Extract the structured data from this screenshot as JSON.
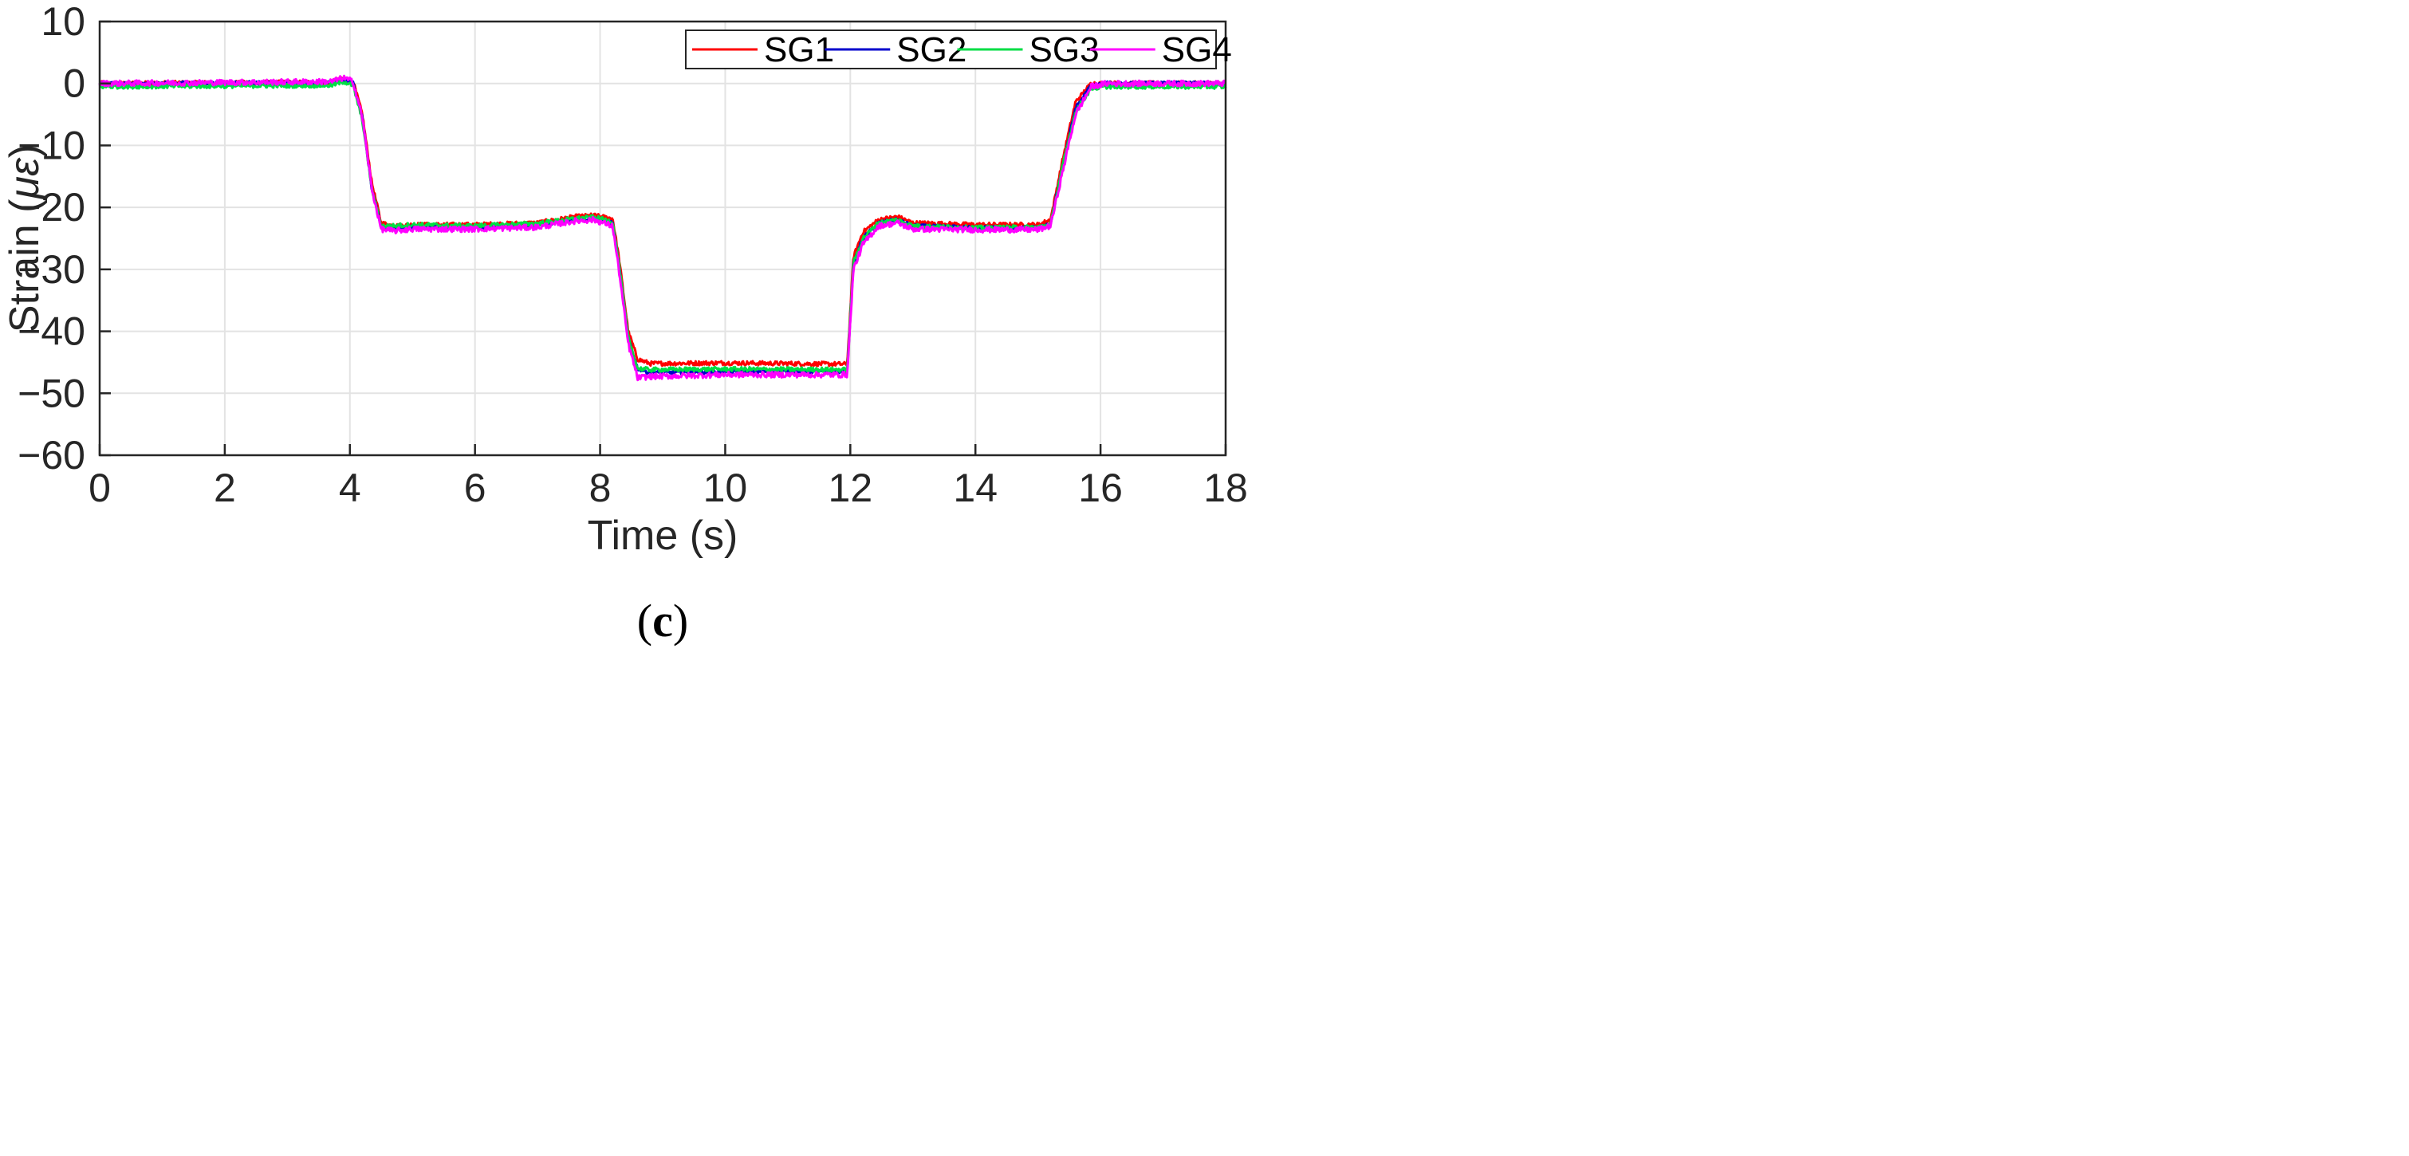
{
  "chart_data": {
    "type": "line",
    "xlabel": "Time (s)",
    "ylabel_prefix": "Strain (",
    "ylabel_symbol": "με",
    "ylabel_suffix": ")",
    "xlim": [
      0,
      18
    ],
    "ylim": [
      -60,
      10
    ],
    "xticks": [
      0,
      2,
      4,
      6,
      8,
      10,
      12,
      14,
      16,
      18
    ],
    "yticks": [
      10,
      0,
      -10,
      -20,
      -30,
      -40,
      -50,
      -60
    ],
    "ytick_labels": [
      "10",
      "0",
      "−10",
      "−20",
      "−30",
      "−40",
      "−50",
      "−60"
    ],
    "grid": true,
    "legend_position": "top-right",
    "legend_orientation": "horizontal",
    "caption_open": "(",
    "caption_letter": "c",
    "caption_close": ")",
    "series": [
      {
        "name": "SG1",
        "color": "#ff0000",
        "noise": 0.35,
        "x": [
          0,
          3.7,
          3.9,
          4.05,
          4.2,
          4.35,
          4.5,
          4.7,
          5.0,
          6.0,
          7.0,
          7.6,
          7.9,
          8.2,
          8.3,
          8.45,
          8.6,
          8.8,
          10.0,
          11.95,
          12.05,
          12.2,
          12.45,
          12.75,
          13.0,
          14.0,
          15.0,
          15.2,
          15.4,
          15.6,
          15.85,
          16.1,
          17.0,
          18.0
        ],
        "y": [
          0,
          0.2,
          0.8,
          0.4,
          -5,
          -16,
          -22.5,
          -23,
          -22.8,
          -22.8,
          -22.5,
          -21.5,
          -21.3,
          -21.8,
          -28,
          -40,
          -44.5,
          -45.2,
          -45.1,
          -45.3,
          -28,
          -24,
          -22,
          -21.5,
          -22.5,
          -22.8,
          -22.8,
          -22,
          -12,
          -3,
          0,
          0,
          0,
          0
        ]
      },
      {
        "name": "SG2",
        "color": "#0000cc",
        "noise": 0.3,
        "x": [
          0,
          3.7,
          3.9,
          4.05,
          4.2,
          4.35,
          4.5,
          4.7,
          5.0,
          6.0,
          7.0,
          7.6,
          7.9,
          8.2,
          8.3,
          8.45,
          8.6,
          8.8,
          10.0,
          11.95,
          12.05,
          12.2,
          12.45,
          12.75,
          13.0,
          14.0,
          15.0,
          15.2,
          15.4,
          15.6,
          15.85,
          16.1,
          17.0,
          18.0
        ],
        "y": [
          0,
          0.1,
          0.6,
          0.2,
          -5.5,
          -17,
          -23,
          -23.3,
          -23.2,
          -23.2,
          -22.9,
          -22,
          -21.8,
          -22.5,
          -29,
          -41,
          -46,
          -46.7,
          -46.5,
          -46.5,
          -29,
          -25,
          -22.5,
          -22,
          -23,
          -23.3,
          -23.3,
          -22.8,
          -13,
          -4,
          -0.3,
          0,
          0,
          0
        ]
      },
      {
        "name": "SG3",
        "color": "#00dd44",
        "noise": 0.35,
        "x": [
          0,
          3.7,
          3.9,
          4.05,
          4.2,
          4.35,
          4.5,
          4.7,
          5.0,
          6.0,
          7.0,
          7.6,
          7.9,
          8.2,
          8.3,
          8.45,
          8.6,
          8.8,
          10.0,
          11.95,
          12.05,
          12.2,
          12.45,
          12.75,
          13.0,
          14.0,
          15.0,
          15.2,
          15.4,
          15.6,
          15.85,
          16.1,
          17.0,
          18.0
        ],
        "y": [
          -0.5,
          -0.3,
          0.3,
          -0.3,
          -6,
          -17,
          -23,
          -23,
          -22.8,
          -23,
          -22.6,
          -21.8,
          -21.6,
          -22.3,
          -29,
          -41,
          -46,
          -46.2,
          -46.1,
          -46.2,
          -29,
          -25,
          -22.5,
          -22,
          -23,
          -23.3,
          -23.2,
          -22.8,
          -13,
          -4.5,
          -0.8,
          -0.5,
          -0.5,
          -0.5
        ]
      },
      {
        "name": "SG4",
        "color": "#ff00ff",
        "noise": 0.45,
        "x": [
          0,
          3.7,
          3.9,
          4.05,
          4.2,
          4.35,
          4.5,
          4.7,
          5.0,
          6.0,
          7.0,
          7.6,
          7.9,
          8.2,
          8.3,
          8.45,
          8.6,
          8.8,
          10.0,
          11.95,
          12.05,
          12.2,
          12.45,
          12.75,
          13.0,
          14.0,
          15.0,
          15.2,
          15.4,
          15.6,
          15.85,
          16.1,
          17.0,
          18.0
        ],
        "y": [
          0,
          0.3,
          0.9,
          0.3,
          -5.5,
          -17,
          -23.5,
          -23.8,
          -23.5,
          -23.5,
          -23.2,
          -22.2,
          -22,
          -23,
          -30,
          -42,
          -47.5,
          -47.3,
          -47,
          -47,
          -30,
          -26,
          -23,
          -22.5,
          -23.5,
          -23.6,
          -23.6,
          -23,
          -14,
          -5,
          -0.5,
          0,
          0,
          0
        ]
      }
    ]
  }
}
